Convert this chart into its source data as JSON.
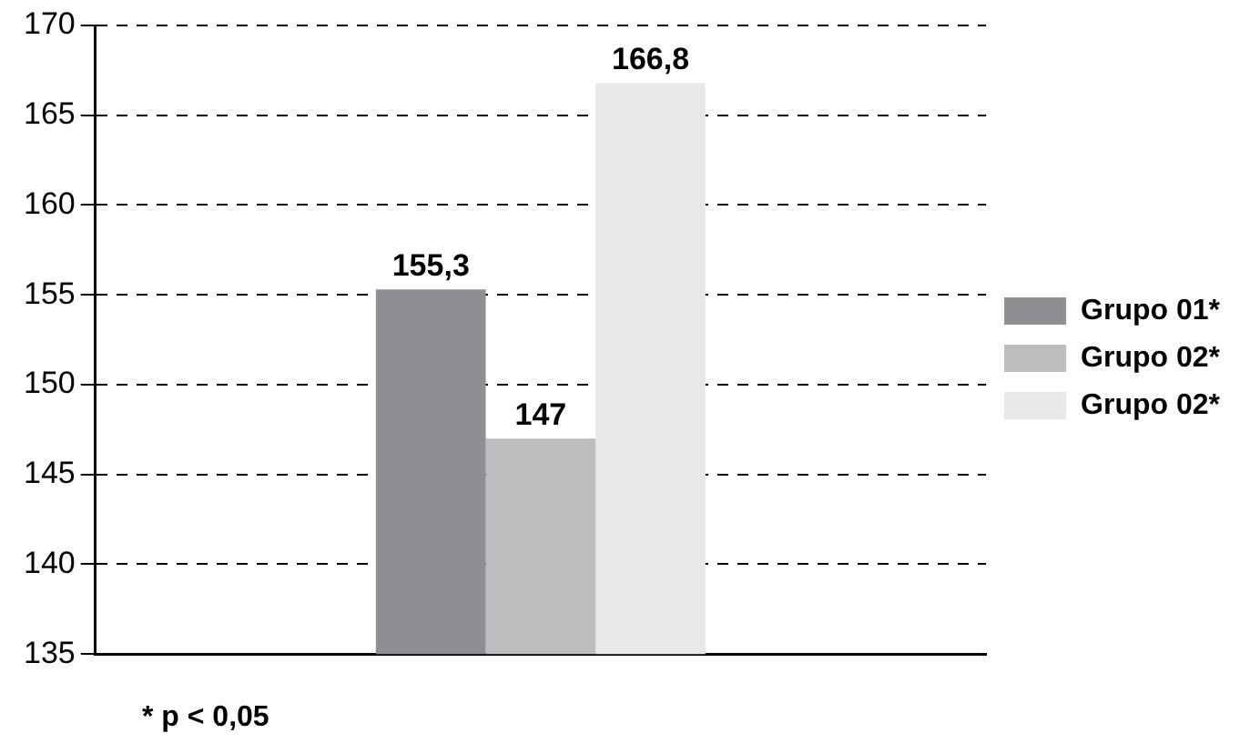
{
  "chart_data": {
    "type": "bar",
    "categories": [
      null
    ],
    "series": [
      {
        "name": "Grupo 01*",
        "color": "#8e8f92",
        "values": [
          155.3
        ],
        "value_labels": [
          "155,3"
        ]
      },
      {
        "name": "Grupo 02*",
        "color": "#bdbdbf",
        "values": [
          147
        ],
        "value_labels": [
          "147"
        ]
      },
      {
        "name": "Grupo 02*",
        "color": "#e8e8e8",
        "values": [
          166.8
        ],
        "value_labels": [
          "166,8"
        ]
      }
    ],
    "ylim": [
      135,
      170
    ],
    "yticks": [
      135,
      140,
      145,
      150,
      155,
      160,
      165,
      170
    ],
    "grid": "y",
    "line_style": "dashed",
    "legend": "right",
    "annotations": [
      "* p < 0,05"
    ]
  }
}
